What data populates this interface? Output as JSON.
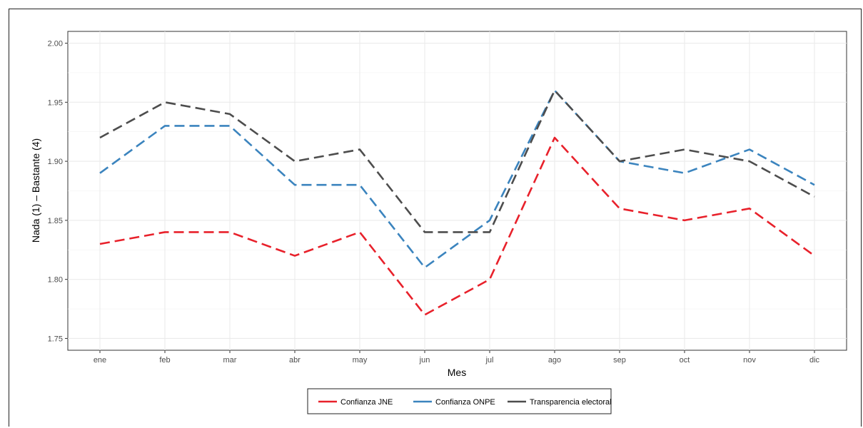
{
  "chart_data": {
    "type": "line",
    "title": "",
    "xlabel": "Mes",
    "ylabel": "Nada (1) – Bastante (4)",
    "categories": [
      "ene",
      "feb",
      "mar",
      "abr",
      "may",
      "jun",
      "jul",
      "ago",
      "sep",
      "oct",
      "nov",
      "dic"
    ],
    "ylim": [
      1.74,
      2.01
    ],
    "yticks": [
      "1.75",
      "1.80",
      "1.85",
      "1.90",
      "1.95",
      "2.00"
    ],
    "grid": true,
    "legend_position": "bottom",
    "line_style": "dashed",
    "series": [
      {
        "name": "Confianza JNE",
        "color": "#e8212b",
        "values": [
          1.83,
          1.84,
          1.84,
          1.82,
          1.84,
          1.77,
          1.8,
          1.92,
          1.86,
          1.85,
          1.86,
          1.82
        ]
      },
      {
        "name": "Confianza ONPE",
        "color": "#3b84be",
        "values": [
          1.89,
          1.93,
          1.93,
          1.88,
          1.88,
          1.81,
          1.85,
          1.96,
          1.9,
          1.89,
          1.91,
          1.88
        ]
      },
      {
        "name": "Transparencia electoral",
        "color": "#4d4d4d",
        "values": [
          1.92,
          1.95,
          1.94,
          1.9,
          1.91,
          1.84,
          1.84,
          1.96,
          1.9,
          1.91,
          1.9,
          1.87
        ]
      }
    ]
  }
}
